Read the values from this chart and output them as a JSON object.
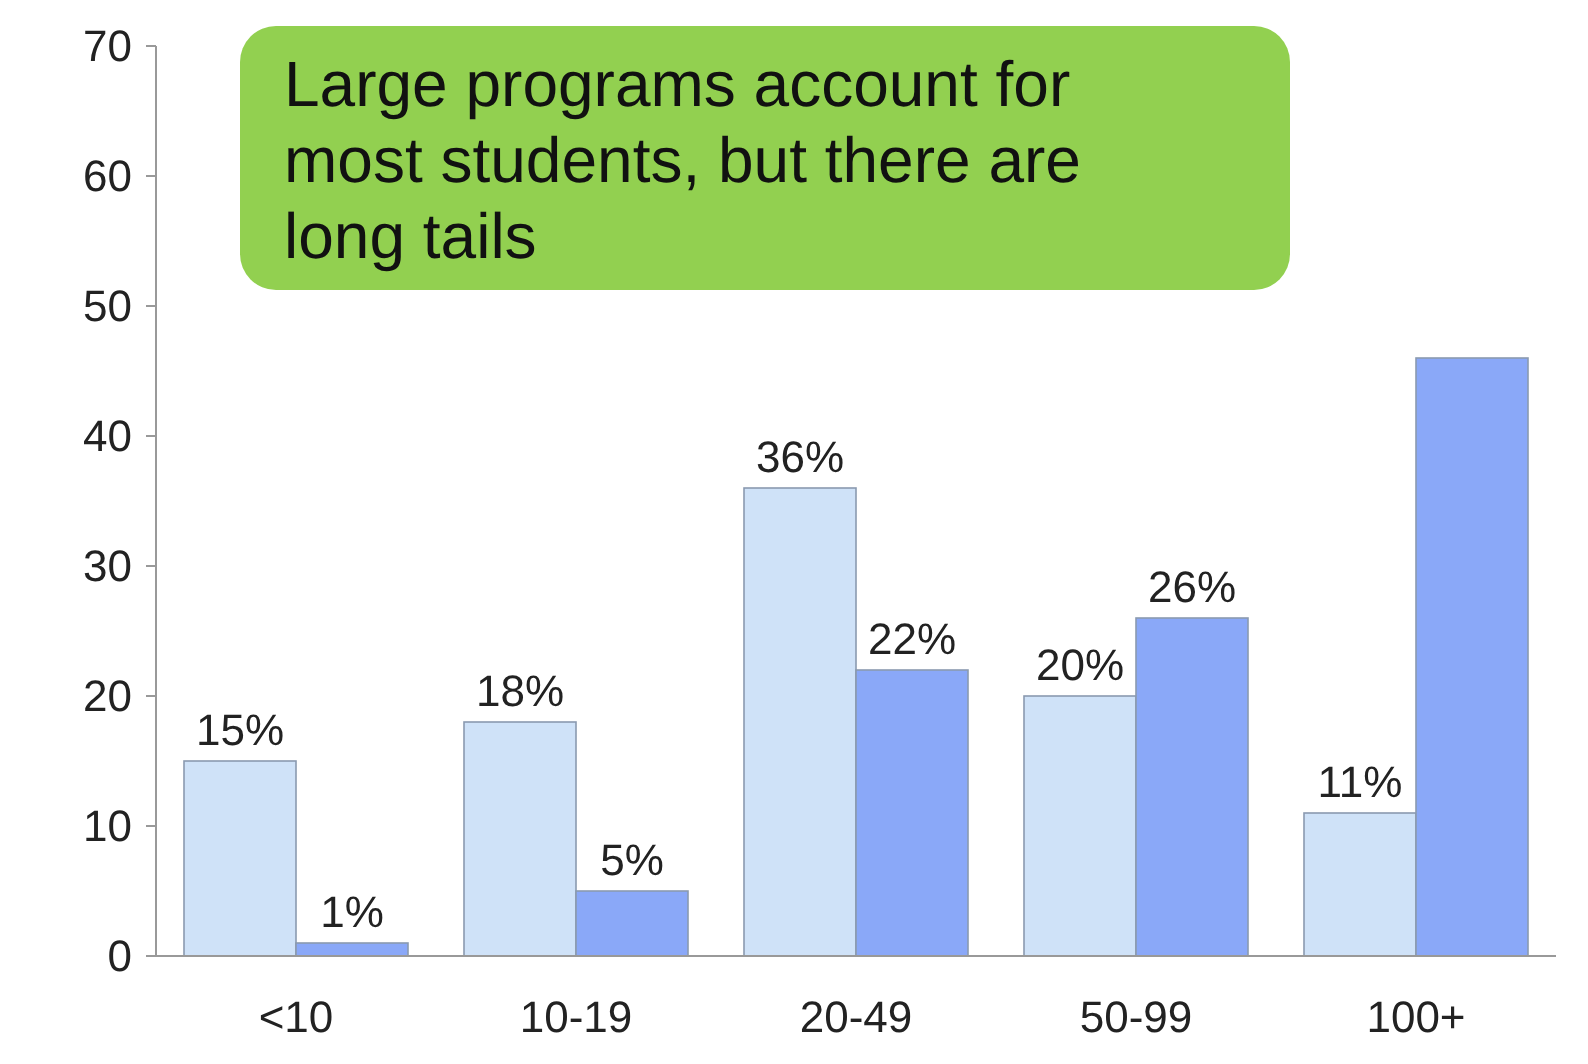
{
  "chart_data": {
    "type": "bar",
    "categories": [
      "<10",
      "10-19",
      "20-49",
      "50-99",
      "100+"
    ],
    "series": [
      {
        "color": "#cfe2f8",
        "values": [
          15,
          18,
          36,
          20,
          11
        ],
        "value_labels": [
          "15%",
          "18%",
          "36%",
          "20%",
          "11%"
        ]
      },
      {
        "color": "#8aa8f8",
        "values": [
          1,
          5,
          22,
          26,
          46
        ],
        "value_labels": [
          "1%",
          "5%",
          "22%",
          "26%",
          null
        ]
      }
    ],
    "ylim": [
      0,
      70
    ],
    "yticks": [
      0,
      10,
      20,
      30,
      40,
      50,
      60,
      70
    ],
    "grid": false,
    "annotations": [
      "Large programs account for most students, but there are long tails"
    ]
  }
}
